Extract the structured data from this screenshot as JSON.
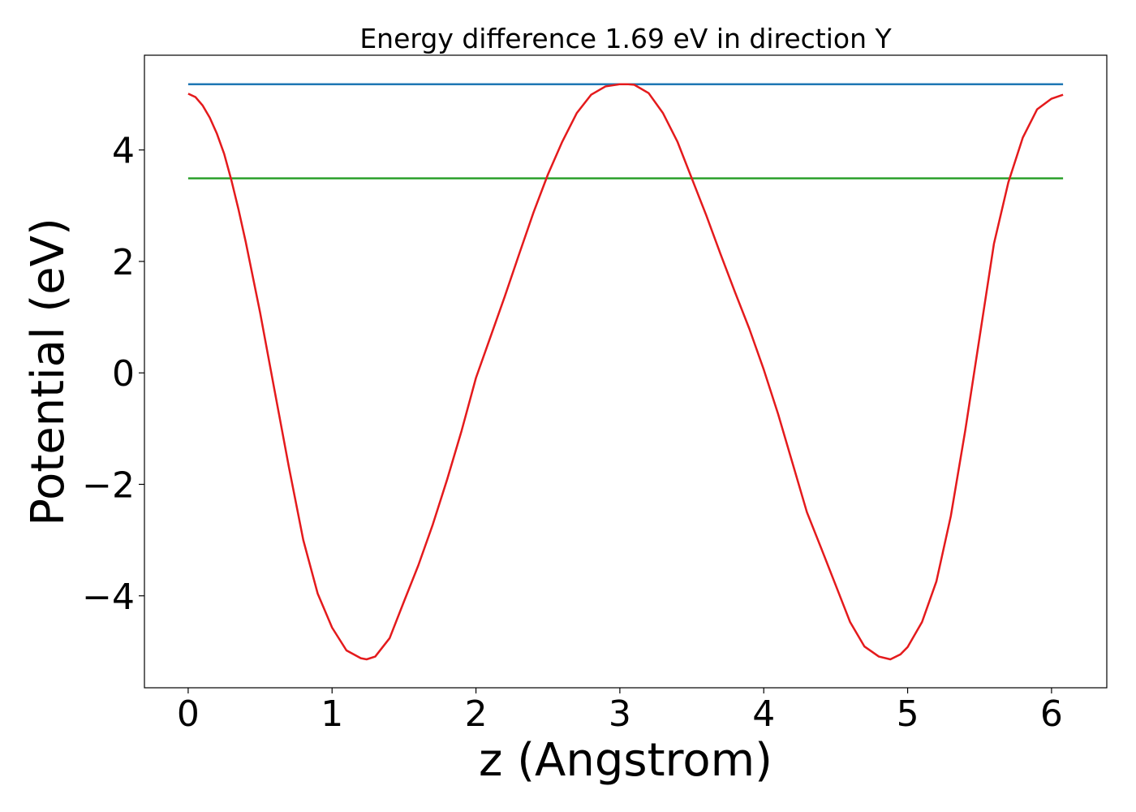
{
  "chart_data": {
    "type": "line",
    "title": "Energy difference 1.69 eV in direction Y",
    "xlabel": "z (Angstrom)",
    "ylabel": "Potential (eV)",
    "xlim": [
      -0.304,
      6.384
    ],
    "ylim": [
      -5.65,
      5.7
    ],
    "xticks": [
      0,
      1,
      2,
      3,
      4,
      5,
      6
    ],
    "yticks": [
      {
        "value": -4,
        "label": "−4"
      },
      {
        "value": -2,
        "label": "−2"
      },
      0,
      2,
      4
    ],
    "grid": false,
    "series": [
      {
        "color": "#1f77b4",
        "x": [
          0,
          6.08
        ],
        "values": [
          5.18,
          5.18
        ]
      },
      {
        "color": "#2ca02c",
        "x": [
          0,
          6.08
        ],
        "values": [
          3.49,
          3.49
        ]
      },
      {
        "color": "#e41a1c",
        "x": [
          0,
          0.05,
          0.1,
          0.15,
          0.2,
          0.25,
          0.3,
          0.35,
          0.4,
          0.5,
          0.6,
          0.7,
          0.8,
          0.9,
          1.0,
          1.1,
          1.2,
          1.24,
          1.3,
          1.4,
          1.5,
          1.6,
          1.7,
          1.8,
          1.9,
          2.0,
          2.1,
          2.2,
          2.3,
          2.4,
          2.5,
          2.6,
          2.7,
          2.8,
          2.9,
          3.0,
          3.05,
          3.1,
          3.2,
          3.3,
          3.4,
          3.5,
          3.6,
          3.7,
          3.8,
          3.9,
          4.0,
          4.1,
          4.2,
          4.3,
          4.4,
          4.5,
          4.6,
          4.7,
          4.8,
          4.88,
          4.95,
          5.0,
          5.1,
          5.2,
          5.3,
          5.4,
          5.5,
          5.6,
          5.7,
          5.8,
          5.9,
          6.0,
          6.08
        ],
        "values": [
          5.01,
          4.95,
          4.8,
          4.58,
          4.29,
          3.93,
          3.46,
          2.93,
          2.35,
          1.08,
          -0.31,
          -1.69,
          -3.0,
          -3.96,
          -4.57,
          -4.98,
          -5.12,
          -5.14,
          -5.09,
          -4.76,
          -4.1,
          -3.45,
          -2.72,
          -1.91,
          -1.04,
          -0.09,
          0.64,
          1.37,
          2.13,
          2.88,
          3.56,
          4.15,
          4.66,
          4.99,
          5.14,
          5.18,
          5.18,
          5.17,
          5.02,
          4.66,
          4.15,
          3.49,
          2.83,
          2.13,
          1.45,
          0.79,
          0.06,
          -0.74,
          -1.62,
          -2.5,
          -3.15,
          -3.81,
          -4.47,
          -4.91,
          -5.09,
          -5.14,
          -5.05,
          -4.92,
          -4.47,
          -3.74,
          -2.57,
          -1.04,
          0.64,
          2.32,
          3.42,
          4.22,
          4.73,
          4.92,
          4.99
        ]
      }
    ]
  }
}
